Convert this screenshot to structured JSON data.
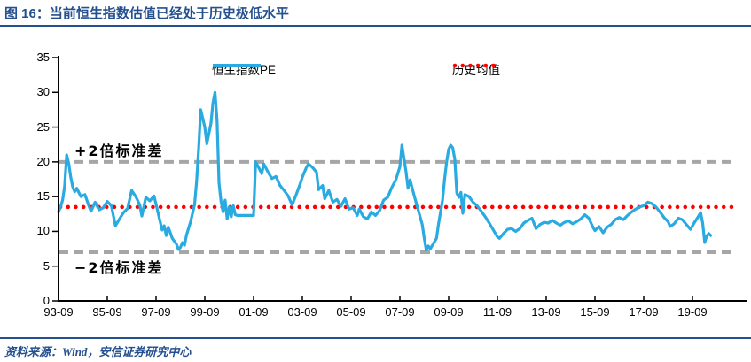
{
  "header": {
    "figure_label": "图 16：",
    "title": "当前恒生指数估值已经处于历史极低水平"
  },
  "footer": {
    "source": "资料来源：Wind，安信证券研究中心"
  },
  "colors": {
    "line": "#29ABE2",
    "mean_line": "#FF0000",
    "band_line": "#A6A6A6",
    "axis": "#000000",
    "accent_navy": "#24508F"
  },
  "chart_data": {
    "type": "line",
    "title": "",
    "xlabel": "",
    "ylabel": "",
    "ylim": [
      0,
      35
    ],
    "grid": false,
    "legend_position": "top-center",
    "y_ticks": [
      0,
      5,
      10,
      15,
      20,
      25,
      30,
      35
    ],
    "x_tick_labels": [
      "93-09",
      "95-09",
      "97-09",
      "99-09",
      "01-09",
      "03-09",
      "05-09",
      "07-09",
      "09-09",
      "11-09",
      "13-09",
      "15-09",
      "17-09",
      "19-09"
    ],
    "legend": [
      {
        "name": "恒生指数PE",
        "color": "#29ABE2",
        "style": "solid"
      },
      {
        "name": "历史均值",
        "color": "#FF0000",
        "style": "dotted"
      }
    ],
    "annotations": [
      {
        "text": "+2倍标准差",
        "value": 20.0
      },
      {
        "text": "−2倍标准差",
        "value": 7.0
      }
    ],
    "mean_value": 13.5,
    "upper_band_value": 20.0,
    "lower_band_value": 7.0,
    "series": [
      {
        "name": "恒生指数PE",
        "points": [
          [
            "1993-09",
            12.8
          ],
          [
            "1993-10",
            13.5
          ],
          [
            "1993-11",
            14.5
          ],
          [
            "1993-12",
            16.5
          ],
          [
            "1994-01",
            21.0
          ],
          [
            "1994-02",
            19.8
          ],
          [
            "1994-03",
            17.8
          ],
          [
            "1994-04",
            16.4
          ],
          [
            "1994-05",
            15.7
          ],
          [
            "1994-06",
            16.2
          ],
          [
            "1994-08",
            15.0
          ],
          [
            "1994-10",
            15.3
          ],
          [
            "1994-12",
            13.6
          ],
          [
            "1995-01",
            12.9
          ],
          [
            "1995-03",
            14.2
          ],
          [
            "1995-05",
            13.1
          ],
          [
            "1995-07",
            13.4
          ],
          [
            "1995-09",
            14.3
          ],
          [
            "1995-11",
            13.7
          ],
          [
            "1996-01",
            10.8
          ],
          [
            "1996-03",
            11.8
          ],
          [
            "1996-05",
            12.7
          ],
          [
            "1996-07",
            13.3
          ],
          [
            "1996-09",
            15.9
          ],
          [
            "1996-11",
            15.0
          ],
          [
            "1997-01",
            13.8
          ],
          [
            "1997-02",
            12.2
          ],
          [
            "1997-04",
            14.9
          ],
          [
            "1997-06",
            14.4
          ],
          [
            "1997-08",
            15.1
          ],
          [
            "1997-09",
            13.9
          ],
          [
            "1997-11",
            11.4
          ],
          [
            "1997-12",
            10.2
          ],
          [
            "1998-01",
            10.8
          ],
          [
            "1998-02",
            9.4
          ],
          [
            "1998-03",
            10.6
          ],
          [
            "1998-05",
            9.0
          ],
          [
            "1998-07",
            8.2
          ],
          [
            "1998-08",
            7.4
          ],
          [
            "1998-09",
            7.7
          ],
          [
            "1998-10",
            8.4
          ],
          [
            "1998-11",
            8.0
          ],
          [
            "1998-12",
            9.5
          ],
          [
            "1999-02",
            11.4
          ],
          [
            "1999-04",
            13.9
          ],
          [
            "1999-05",
            17.3
          ],
          [
            "1999-06",
            22.0
          ],
          [
            "1999-07",
            27.5
          ],
          [
            "1999-09",
            25.0
          ],
          [
            "1999-10",
            22.6
          ],
          [
            "1999-12",
            25.5
          ],
          [
            "2000-01",
            28.5
          ],
          [
            "2000-02",
            30.0
          ],
          [
            "2000-03",
            26.0
          ],
          [
            "2000-04",
            17.0
          ],
          [
            "2000-05",
            14.3
          ],
          [
            "2000-06",
            12.8
          ],
          [
            "2000-07",
            14.5
          ],
          [
            "2000-08",
            11.8
          ],
          [
            "2000-09",
            13.5
          ],
          [
            "2000-10",
            12.1
          ],
          [
            "2000-11",
            13.7
          ],
          [
            "2000-12",
            12.4
          ],
          [
            "2001-01",
            12.3
          ],
          [
            "2001-04",
            12.3
          ],
          [
            "2001-07",
            12.3
          ],
          [
            "2001-09",
            12.3
          ],
          [
            "2001-10",
            20.0
          ],
          [
            "2001-12",
            18.9
          ],
          [
            "2002-01",
            18.3
          ],
          [
            "2002-02",
            19.7
          ],
          [
            "2002-04",
            18.6
          ],
          [
            "2002-06",
            17.6
          ],
          [
            "2002-08",
            17.9
          ],
          [
            "2002-10",
            16.6
          ],
          [
            "2002-12",
            15.9
          ],
          [
            "2003-02",
            15.1
          ],
          [
            "2003-04",
            13.8
          ],
          [
            "2003-06",
            15.3
          ],
          [
            "2003-08",
            16.9
          ],
          [
            "2003-09",
            17.8
          ],
          [
            "2003-11",
            19.2
          ],
          [
            "2003-12",
            19.7
          ],
          [
            "2004-02",
            19.2
          ],
          [
            "2004-04",
            18.5
          ],
          [
            "2004-05",
            16.0
          ],
          [
            "2004-07",
            16.6
          ],
          [
            "2004-08",
            14.7
          ],
          [
            "2004-10",
            15.9
          ],
          [
            "2004-12",
            14.2
          ],
          [
            "2005-02",
            14.6
          ],
          [
            "2005-04",
            13.6
          ],
          [
            "2005-06",
            14.7
          ],
          [
            "2005-08",
            13.2
          ],
          [
            "2005-10",
            13.4
          ],
          [
            "2005-12",
            12.3
          ],
          [
            "2006-01",
            13.2
          ],
          [
            "2006-03",
            12.1
          ],
          [
            "2006-05",
            11.8
          ],
          [
            "2006-07",
            12.8
          ],
          [
            "2006-09",
            12.3
          ],
          [
            "2006-11",
            13.0
          ],
          [
            "2007-01",
            14.5
          ],
          [
            "2007-03",
            14.9
          ],
          [
            "2007-05",
            16.3
          ],
          [
            "2007-07",
            17.4
          ],
          [
            "2007-09",
            19.3
          ],
          [
            "2007-10",
            22.4
          ],
          [
            "2007-12",
            18.6
          ],
          [
            "2008-01",
            16.2
          ],
          [
            "2008-02",
            17.4
          ],
          [
            "2008-04",
            15.2
          ],
          [
            "2008-06",
            13.1
          ],
          [
            "2008-08",
            11.0
          ],
          [
            "2008-09",
            9.0
          ],
          [
            "2008-10",
            7.3
          ],
          [
            "2008-11",
            7.9
          ],
          [
            "2008-12",
            7.5
          ],
          [
            "2009-01",
            8.0
          ],
          [
            "2009-03",
            9.0
          ],
          [
            "2009-04",
            11.0
          ],
          [
            "2009-06",
            14.5
          ],
          [
            "2009-07",
            17.5
          ],
          [
            "2009-08",
            20.0
          ],
          [
            "2009-09",
            21.8
          ],
          [
            "2009-10",
            22.4
          ],
          [
            "2009-11",
            22.0
          ],
          [
            "2009-12",
            20.4
          ],
          [
            "2010-01",
            15.5
          ],
          [
            "2010-02",
            14.9
          ],
          [
            "2010-03",
            15.6
          ],
          [
            "2010-04",
            12.6
          ],
          [
            "2010-05",
            15.3
          ],
          [
            "2010-07",
            15.0
          ],
          [
            "2010-09",
            14.2
          ],
          [
            "2010-11",
            13.7
          ],
          [
            "2011-01",
            12.9
          ],
          [
            "2011-03",
            12.1
          ],
          [
            "2011-05",
            11.2
          ],
          [
            "2011-07",
            10.2
          ],
          [
            "2011-09",
            9.2
          ],
          [
            "2011-10",
            9.0
          ],
          [
            "2011-12",
            9.7
          ],
          [
            "2012-02",
            10.3
          ],
          [
            "2012-04",
            10.4
          ],
          [
            "2012-06",
            10.0
          ],
          [
            "2012-08",
            10.4
          ],
          [
            "2012-10",
            11.2
          ],
          [
            "2012-12",
            11.6
          ],
          [
            "2013-02",
            11.9
          ],
          [
            "2013-04",
            10.4
          ],
          [
            "2013-06",
            11.0
          ],
          [
            "2013-08",
            11.3
          ],
          [
            "2013-10",
            11.2
          ],
          [
            "2013-12",
            11.6
          ],
          [
            "2014-02",
            11.2
          ],
          [
            "2014-04",
            10.9
          ],
          [
            "2014-06",
            11.3
          ],
          [
            "2014-08",
            11.5
          ],
          [
            "2014-10",
            11.1
          ],
          [
            "2014-12",
            11.4
          ],
          [
            "2015-02",
            11.8
          ],
          [
            "2015-04",
            12.4
          ],
          [
            "2015-06",
            11.9
          ],
          [
            "2015-08",
            10.6
          ],
          [
            "2015-09",
            10.1
          ],
          [
            "2015-11",
            10.7
          ],
          [
            "2016-01",
            9.8
          ],
          [
            "2016-03",
            10.6
          ],
          [
            "2016-05",
            11.0
          ],
          [
            "2016-07",
            11.7
          ],
          [
            "2016-09",
            12.0
          ],
          [
            "2016-11",
            11.7
          ],
          [
            "2017-01",
            12.3
          ],
          [
            "2017-03",
            12.8
          ],
          [
            "2017-05",
            13.2
          ],
          [
            "2017-07",
            13.5
          ],
          [
            "2017-09",
            13.7
          ],
          [
            "2017-11",
            14.2
          ],
          [
            "2018-01",
            14.0
          ],
          [
            "2018-03",
            13.5
          ],
          [
            "2018-05",
            12.8
          ],
          [
            "2018-07",
            12.0
          ],
          [
            "2018-09",
            11.4
          ],
          [
            "2018-10",
            10.7
          ],
          [
            "2018-12",
            11.1
          ],
          [
            "2019-02",
            11.9
          ],
          [
            "2019-04",
            11.7
          ],
          [
            "2019-06",
            11.0
          ],
          [
            "2019-08",
            10.3
          ],
          [
            "2019-10",
            11.3
          ],
          [
            "2019-12",
            12.2
          ],
          [
            "2020-01",
            12.7
          ],
          [
            "2020-02",
            11.2
          ],
          [
            "2020-03",
            8.4
          ],
          [
            "2020-04",
            9.3
          ],
          [
            "2020-05",
            9.7
          ],
          [
            "2020-06",
            9.4
          ]
        ]
      }
    ]
  }
}
